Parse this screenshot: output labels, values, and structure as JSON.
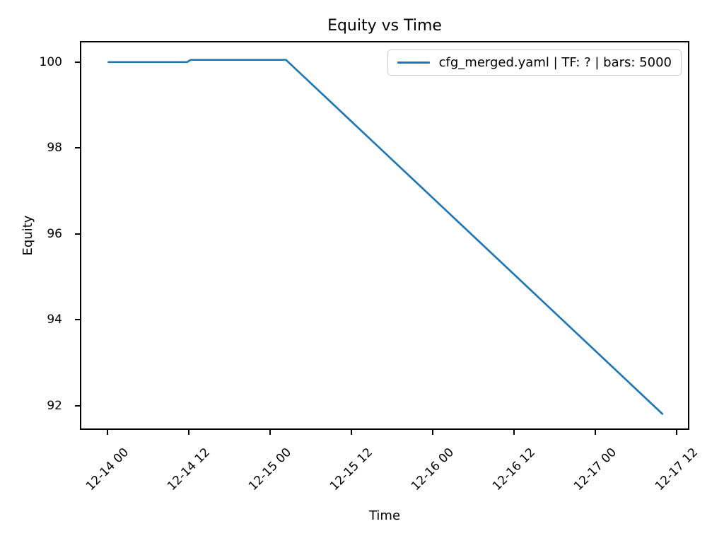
{
  "figure": {
    "title": "Equity vs Time",
    "xlabel": "Time",
    "ylabel": "Equity"
  },
  "legend": {
    "label": "cfg_merged.yaml | TF: ? | bars: 5000",
    "line_color": "#1f77b4",
    "position": "upper right"
  },
  "chart_data": {
    "type": "line",
    "title": "Equity vs Time",
    "xlabel": "Time",
    "ylabel": "Equity",
    "grid": false,
    "legend_position": "upper right",
    "x_tick_labels": [
      "12-14 00",
      "12-14 12",
      "12-15 00",
      "12-15 12",
      "12-16 00",
      "12-16 12",
      "12-17 00",
      "12-17 12"
    ],
    "y_tick_labels": [
      "92",
      "94",
      "96",
      "98",
      "100"
    ],
    "xlim_hours": [
      -4.1,
      85.9
    ],
    "ylim": [
      91.44,
      100.49
    ],
    "series": [
      {
        "name": "cfg_merged.yaml | TF: ? | bars: 5000",
        "color": "#1f77b4",
        "points": [
          {
            "time": "12-14 00:00",
            "equity": 100.0
          },
          {
            "time": "12-14 11:45",
            "equity": 100.0
          },
          {
            "time": "12-14 12:15",
            "equity": 100.05
          },
          {
            "time": "12-15 02:20",
            "equity": 100.05
          },
          {
            "time": "12-17 10:00",
            "equity": 91.8
          }
        ]
      }
    ]
  }
}
